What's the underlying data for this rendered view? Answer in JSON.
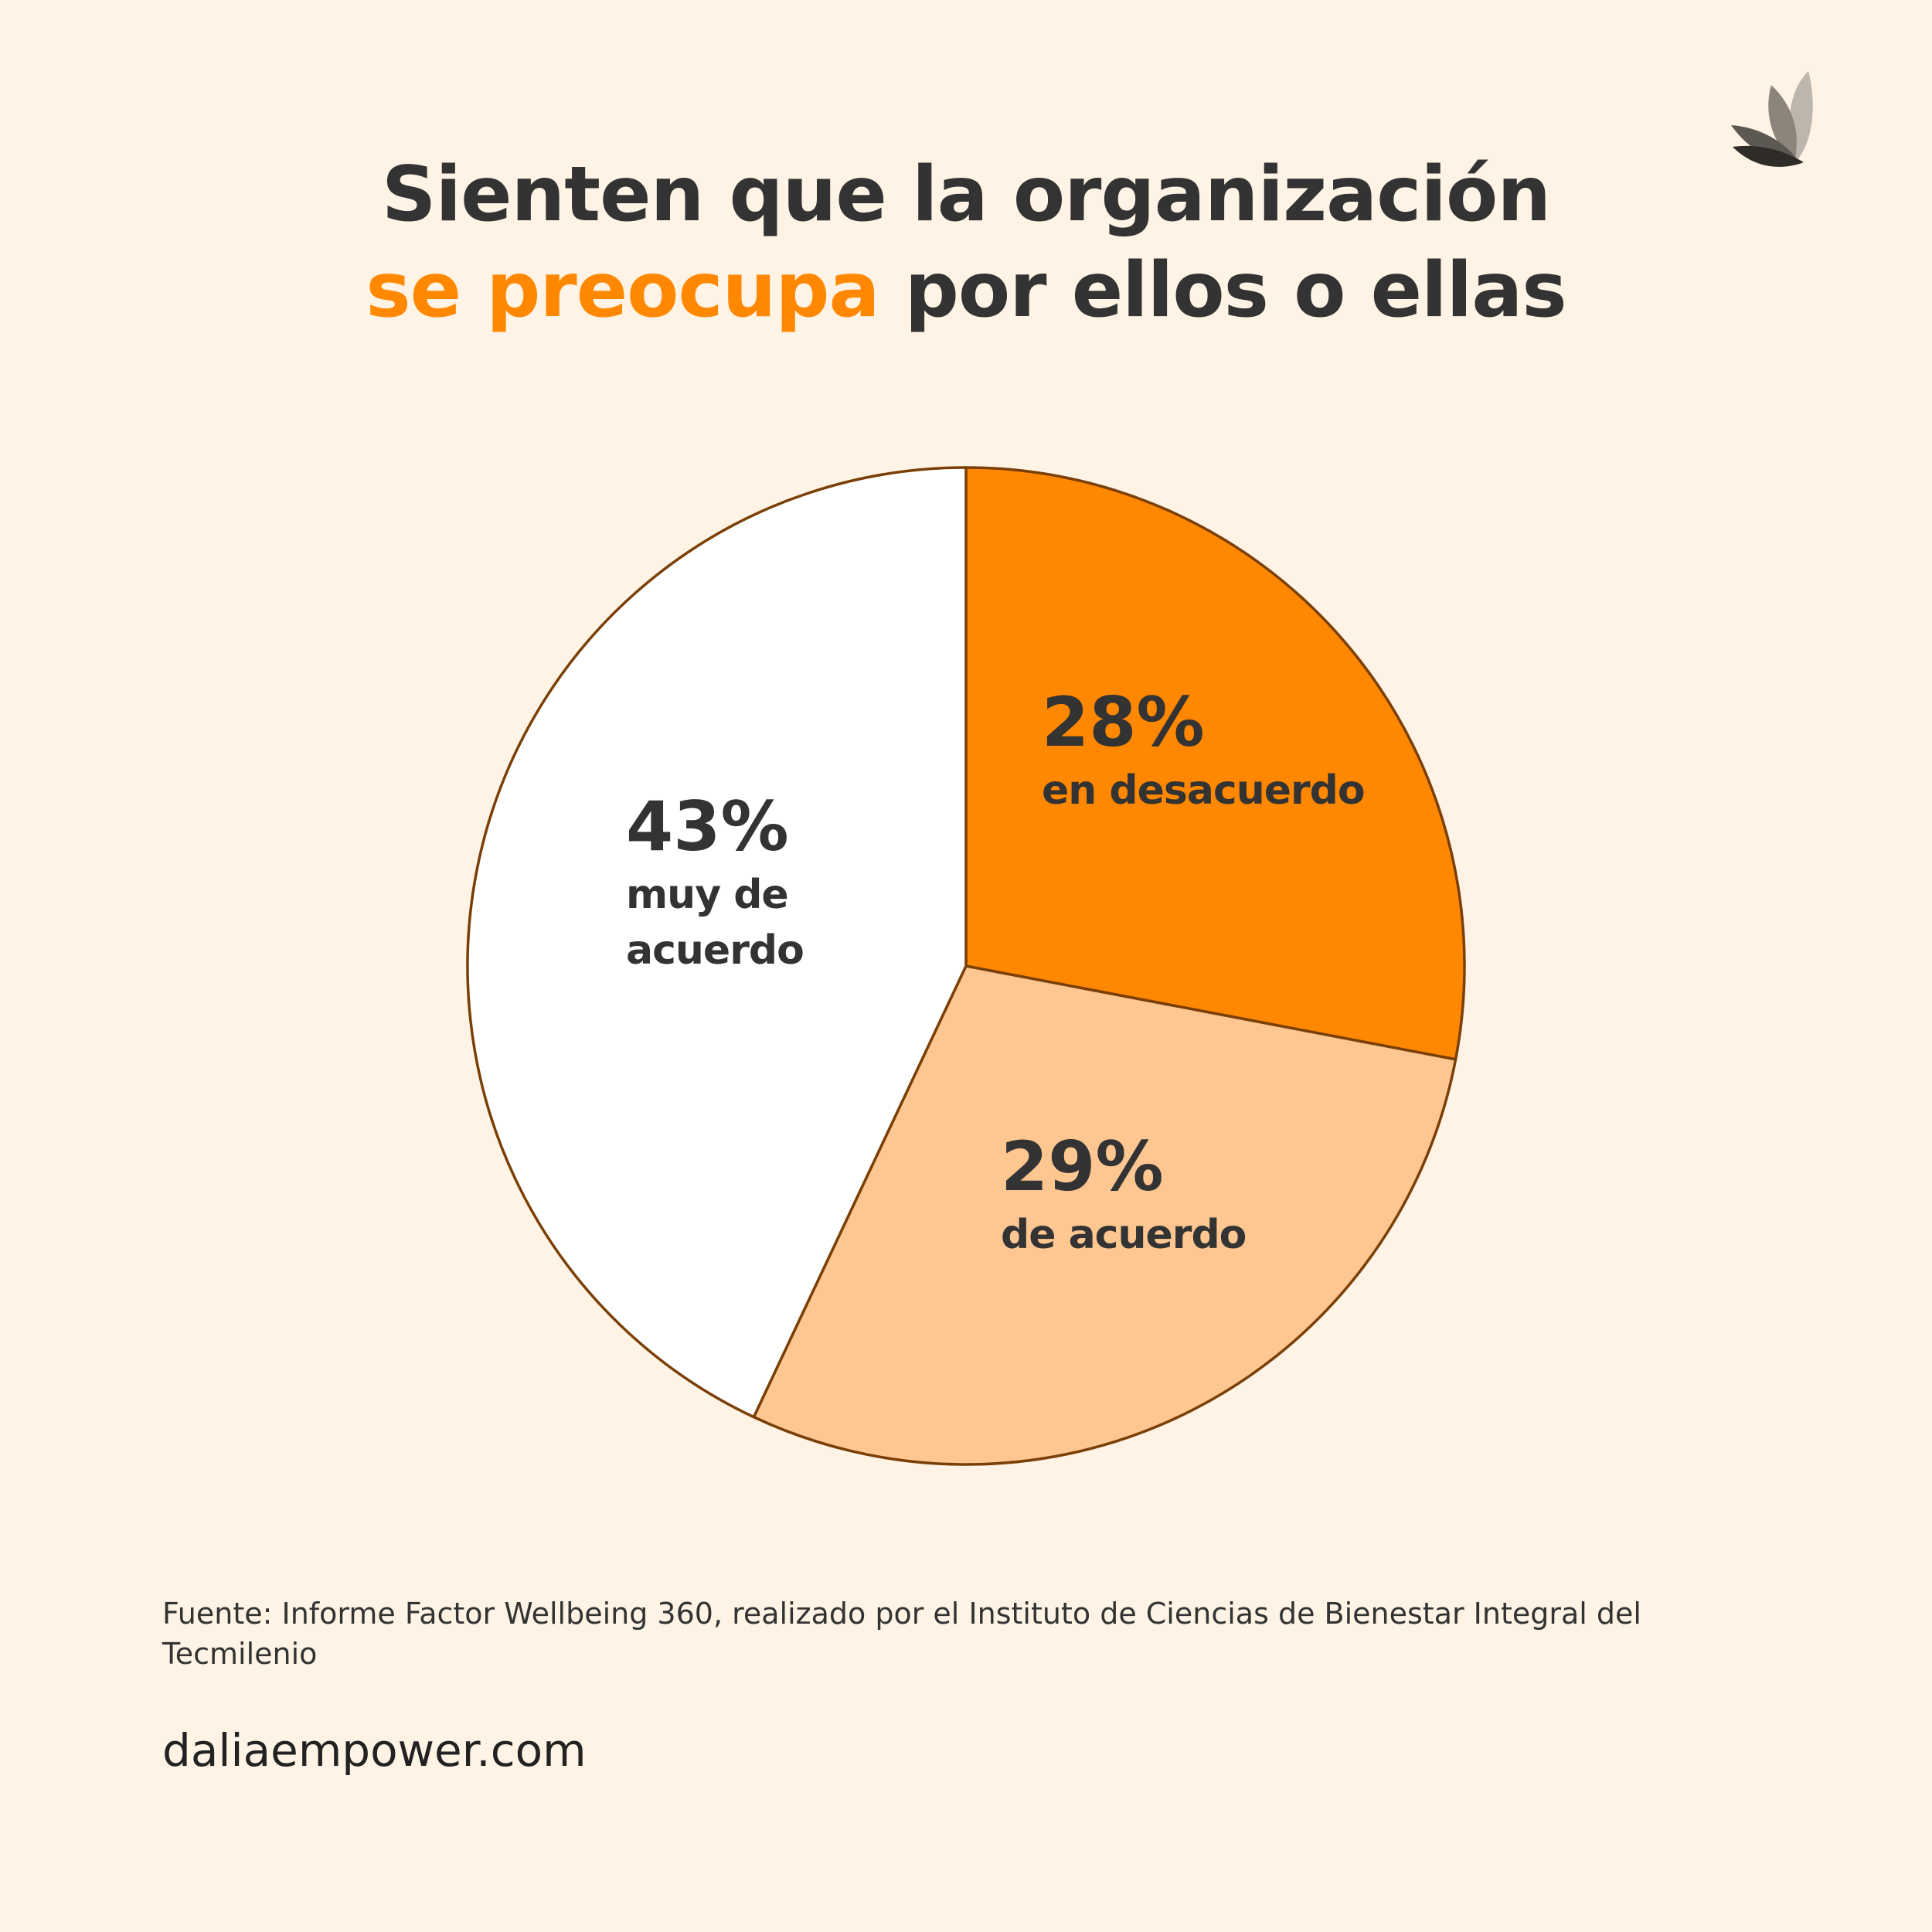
{
  "title": {
    "line1": "Sienten que la organización",
    "line2_highlight": "se preocupa",
    "line2_rest": " por ellos o ellas"
  },
  "logo": {
    "icon": "leaf-petals-icon"
  },
  "chart_data": {
    "type": "pie",
    "title": "Sienten que la organización se preocupa por ellos o ellas",
    "slices": [
      {
        "label": "en desacuerdo",
        "value": 28,
        "value_label": "28%",
        "color": "#ff8800"
      },
      {
        "label": "de acuerdo",
        "value": 29,
        "value_label": "29%",
        "color": "#fec690"
      },
      {
        "label": "muy de acuerdo",
        "value": 43,
        "value_label": "43%",
        "color": "#ffffff"
      }
    ],
    "start_angle": "12 o'clock",
    "direction": "clockwise",
    "stroke_color": "#7a3f06",
    "legend": "none"
  },
  "source": " Fuente: Informe Factor Wellbeing 360, realizado por el Instituto de Ciencias de Bienestar Integral del Tecmilenio",
  "website": "daliaempower.com"
}
